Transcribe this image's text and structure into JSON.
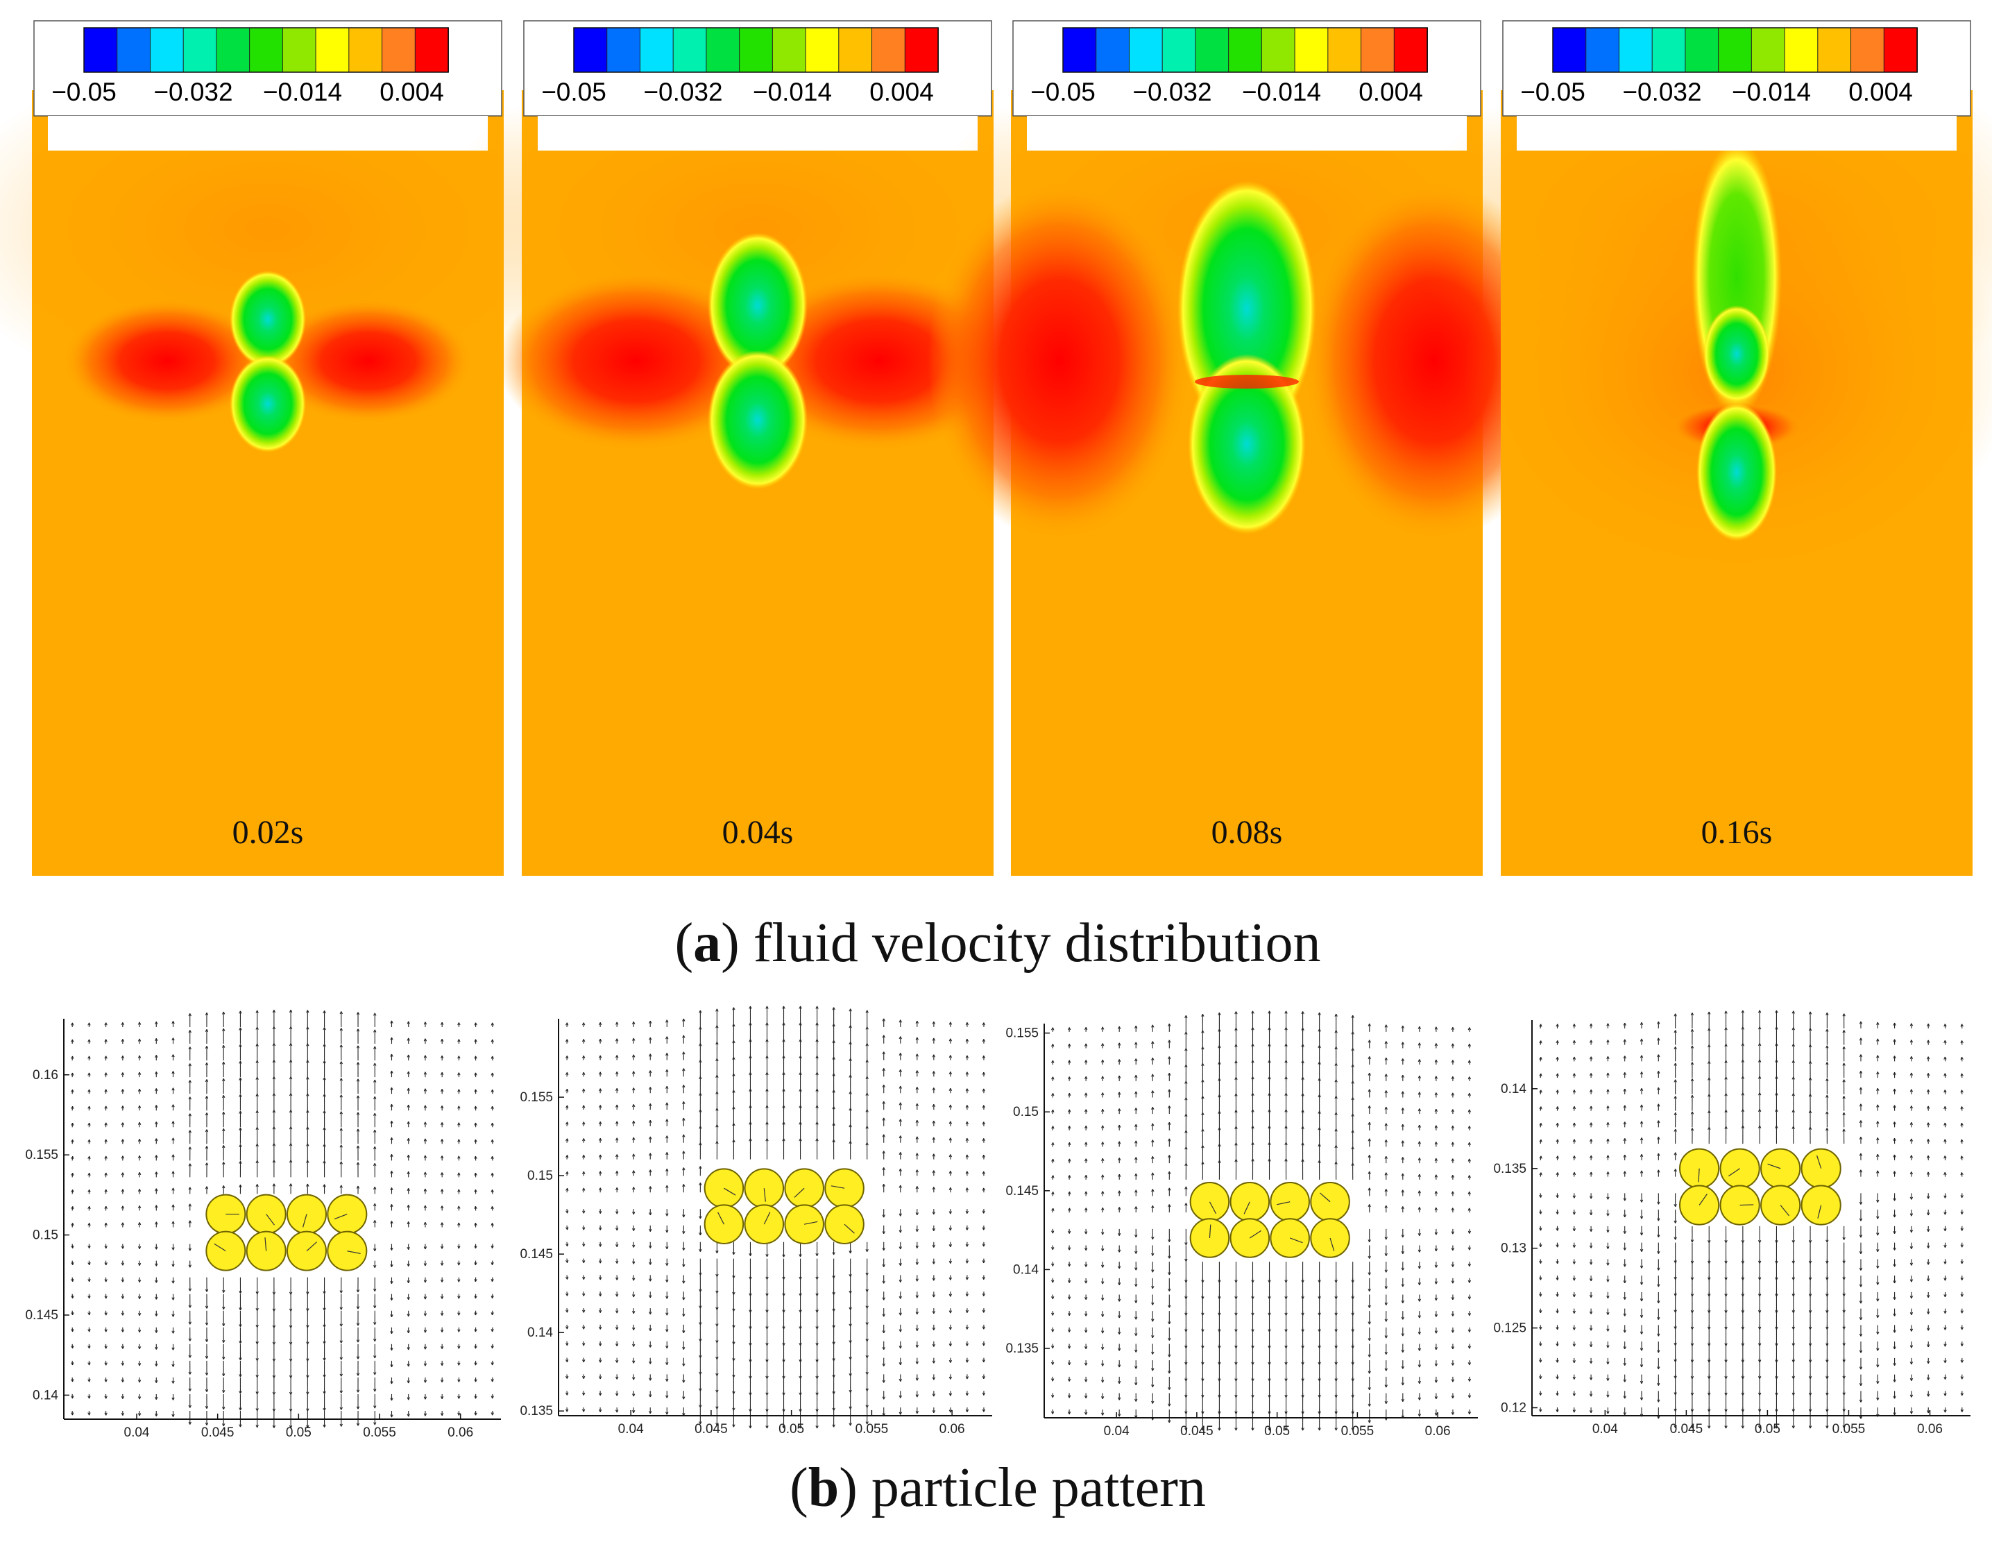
{
  "figure": {
    "caption_a_letter": "a",
    "caption_a_text": "fluid velocity distribution",
    "caption_b_letter": "b",
    "caption_b_text": "particle pattern"
  },
  "colors": {
    "background_field": "#ffaa00",
    "positive_max": "#ff0000",
    "low_velocity": "#00e21a",
    "lowest_velocity_core": "#00dcd4",
    "particle_fill": "#ffee22",
    "particle_stroke": "#6e6400",
    "vector_color": "#222222",
    "colorbar_stops": [
      "#0000ff",
      "#0070ff",
      "#00e0ff",
      "#00f0b0",
      "#00e040",
      "#22e000",
      "#90e800",
      "#ffff00",
      "#ffc000",
      "#ff8020",
      "#ff0000"
    ]
  },
  "chart_data": [
    {
      "type": "heatmap",
      "title": "0.02s",
      "colorbar": {
        "ticks": [
          "−0.05",
          "−0.032",
          "−0.014",
          "0.004"
        ],
        "range": [
          -0.05,
          0.01
        ]
      },
      "background_value": 0.0,
      "features": [
        {
          "kind": "low_velocity_lobe",
          "position": "center-upper",
          "value": -0.02
        },
        {
          "kind": "low_velocity_lobe",
          "position": "center-lower",
          "value": -0.02
        },
        {
          "kind": "high_velocity_lobe",
          "position": "center-left",
          "value": 0.004
        },
        {
          "kind": "high_velocity_lobe",
          "position": "center-right",
          "value": 0.004
        }
      ]
    },
    {
      "type": "heatmap",
      "title": "0.04s",
      "colorbar": {
        "ticks": [
          "−0.05",
          "−0.032",
          "−0.014",
          "0.004"
        ],
        "range": [
          -0.05,
          0.01
        ]
      },
      "background_value": 0.0,
      "features": [
        {
          "kind": "low_velocity_lobe",
          "position": "center-upper",
          "value": -0.025
        },
        {
          "kind": "low_velocity_lobe",
          "position": "center-lower",
          "value": -0.025
        },
        {
          "kind": "high_velocity_lobe",
          "position": "center-left",
          "value": 0.006
        },
        {
          "kind": "high_velocity_lobe",
          "position": "center-right",
          "value": 0.006
        }
      ]
    },
    {
      "type": "heatmap",
      "title": "0.08s",
      "colorbar": {
        "ticks": [
          "−0.05",
          "−0.032",
          "−0.014",
          "0.004"
        ],
        "range": [
          -0.05,
          0.01
        ]
      },
      "background_value": 0.0,
      "features": [
        {
          "kind": "low_velocity_lobe",
          "position": "center-upper",
          "value": -0.03
        },
        {
          "kind": "low_velocity_lobe",
          "position": "center-lower",
          "value": -0.03
        },
        {
          "kind": "high_velocity_lobe",
          "position": "left",
          "value": 0.008
        },
        {
          "kind": "high_velocity_lobe",
          "position": "right",
          "value": 0.008
        }
      ]
    },
    {
      "type": "heatmap",
      "title": "0.16s",
      "colorbar": {
        "ticks": [
          "−0.05",
          "−0.032",
          "−0.014",
          "0.004"
        ],
        "range": [
          -0.05,
          0.01
        ]
      },
      "background_value": 0.0,
      "features": [
        {
          "kind": "low_velocity_wake",
          "position": "center-upper",
          "value": -0.02
        },
        {
          "kind": "low_velocity_lobe",
          "position": "center-lower",
          "value": -0.025
        },
        {
          "kind": "high_velocity_band",
          "position": "center",
          "value": 0.008
        }
      ]
    },
    {
      "type": "scatter",
      "subtype": "vector_field",
      "xlim": [
        0.0355,
        0.0625
      ],
      "ylim": [
        0.1385,
        0.1635
      ],
      "xticks": [
        0.04,
        0.045,
        0.05,
        0.055,
        0.06
      ],
      "xtick_labels": [
        "0.04",
        "0.045",
        "0.05",
        "0.055",
        "0.06"
      ],
      "yticks": [
        0.14,
        0.145,
        0.15,
        0.155,
        0.16
      ],
      "ytick_labels": [
        "0.14",
        "0.145",
        "0.15",
        "0.155",
        "0.16"
      ],
      "particle_radius": 0.0012,
      "particles": [
        {
          "x": 0.0455,
          "y": 0.1513
        },
        {
          "x": 0.048,
          "y": 0.1513
        },
        {
          "x": 0.0505,
          "y": 0.1513
        },
        {
          "x": 0.053,
          "y": 0.1513
        },
        {
          "x": 0.0455,
          "y": 0.149
        },
        {
          "x": 0.048,
          "y": 0.149
        },
        {
          "x": 0.0505,
          "y": 0.149
        },
        {
          "x": 0.053,
          "y": 0.149
        }
      ]
    },
    {
      "type": "scatter",
      "subtype": "vector_field",
      "xlim": [
        0.0355,
        0.0625
      ],
      "ylim": [
        0.1347,
        0.16
      ],
      "xticks": [
        0.04,
        0.045,
        0.05,
        0.055,
        0.06
      ],
      "xtick_labels": [
        "0.04",
        "0.045",
        "0.05",
        "0.055",
        "0.06"
      ],
      "yticks": [
        0.135,
        0.14,
        0.145,
        0.15,
        0.155
      ],
      "ytick_labels": [
        "0.135",
        "0.14",
        "0.145",
        "0.15",
        "0.155"
      ],
      "particle_radius": 0.0012,
      "particles": [
        {
          "x": 0.0458,
          "y": 0.1492
        },
        {
          "x": 0.0483,
          "y": 0.1492
        },
        {
          "x": 0.0508,
          "y": 0.1492
        },
        {
          "x": 0.0533,
          "y": 0.1492
        },
        {
          "x": 0.0458,
          "y": 0.1469
        },
        {
          "x": 0.0483,
          "y": 0.1469
        },
        {
          "x": 0.0508,
          "y": 0.1469
        },
        {
          "x": 0.0533,
          "y": 0.1469
        }
      ]
    },
    {
      "type": "scatter",
      "subtype": "vector_field",
      "xlim": [
        0.0355,
        0.0625
      ],
      "ylim": [
        0.1306,
        0.1556
      ],
      "xticks": [
        0.04,
        0.045,
        0.05,
        0.055,
        0.06
      ],
      "xtick_labels": [
        "0.04",
        "0.045",
        "0.05",
        "0.055",
        "0.06"
      ],
      "yticks": [
        0.135,
        0.14,
        0.145,
        0.15,
        0.155
      ],
      "ytick_labels": [
        "0.135",
        "0.14",
        "0.145",
        "0.15",
        "0.155"
      ],
      "particle_radius": 0.0012,
      "particles": [
        {
          "x": 0.0458,
          "y": 0.1443
        },
        {
          "x": 0.0483,
          "y": 0.1443
        },
        {
          "x": 0.0508,
          "y": 0.1443
        },
        {
          "x": 0.0533,
          "y": 0.1443
        },
        {
          "x": 0.0458,
          "y": 0.142
        },
        {
          "x": 0.0483,
          "y": 0.142
        },
        {
          "x": 0.0508,
          "y": 0.142
        },
        {
          "x": 0.0533,
          "y": 0.142
        }
      ]
    },
    {
      "type": "scatter",
      "subtype": "vector_field",
      "xlim": [
        0.0355,
        0.0625
      ],
      "ylim": [
        0.1195,
        0.1443
      ],
      "xticks": [
        0.04,
        0.045,
        0.05,
        0.055,
        0.06
      ],
      "xtick_labels": [
        "0.04",
        "0.045",
        "0.05",
        "0.055",
        "0.06"
      ],
      "yticks": [
        0.12,
        0.125,
        0.13,
        0.135,
        0.14
      ],
      "ytick_labels": [
        "0.12",
        "0.125",
        "0.13",
        "0.135",
        "0.14"
      ],
      "particle_radius": 0.0012,
      "particles": [
        {
          "x": 0.0458,
          "y": 0.135
        },
        {
          "x": 0.0483,
          "y": 0.135
        },
        {
          "x": 0.0508,
          "y": 0.135
        },
        {
          "x": 0.0533,
          "y": 0.135
        },
        {
          "x": 0.0458,
          "y": 0.1327
        },
        {
          "x": 0.0483,
          "y": 0.1327
        },
        {
          "x": 0.0508,
          "y": 0.1327
        },
        {
          "x": 0.0533,
          "y": 0.1327
        }
      ]
    }
  ]
}
